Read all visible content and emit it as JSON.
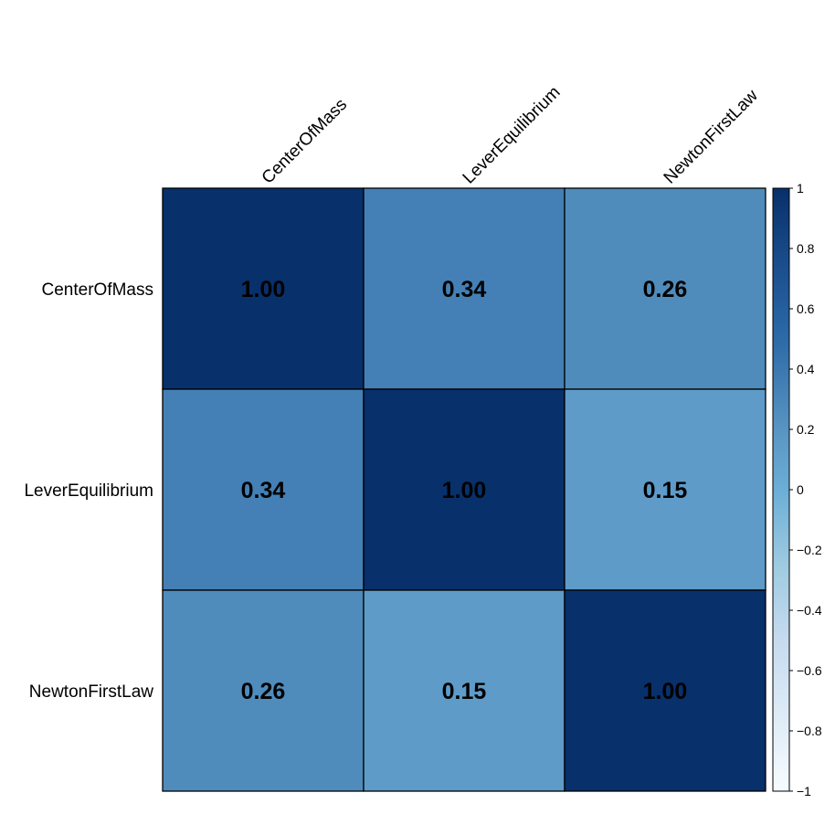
{
  "chart_data": {
    "type": "heatmap",
    "title": "",
    "rows": [
      "CenterOfMass",
      "LeverEquilibrium",
      "NewtonFirstLaw"
    ],
    "columns": [
      "CenterOfMass",
      "LeverEquilibrium",
      "NewtonFirstLaw"
    ],
    "values": [
      [
        1.0,
        0.34,
        0.26
      ],
      [
        0.34,
        1.0,
        0.15
      ],
      [
        0.26,
        0.15,
        1.0
      ]
    ],
    "value_labels": [
      [
        "1.00",
        "0.34",
        "0.26"
      ],
      [
        "0.34",
        "1.00",
        "0.15"
      ],
      [
        "0.26",
        "0.15",
        "1.00"
      ]
    ],
    "colorbar": {
      "range": [
        -1,
        1
      ],
      "ticks": [
        "1",
        "0.8",
        "0.6",
        "0.4",
        "0.2",
        "0",
        "−0.2",
        "−0.4",
        "−0.6",
        "−0.8",
        "−1"
      ],
      "tick_values": [
        1,
        0.8,
        0.6,
        0.4,
        0.2,
        0,
        -0.2,
        -0.4,
        -0.6,
        -0.8,
        -1
      ],
      "colormap": "Blues",
      "low_color": "#f7fbff",
      "high_color": "#08306b"
    },
    "legend": "right"
  }
}
